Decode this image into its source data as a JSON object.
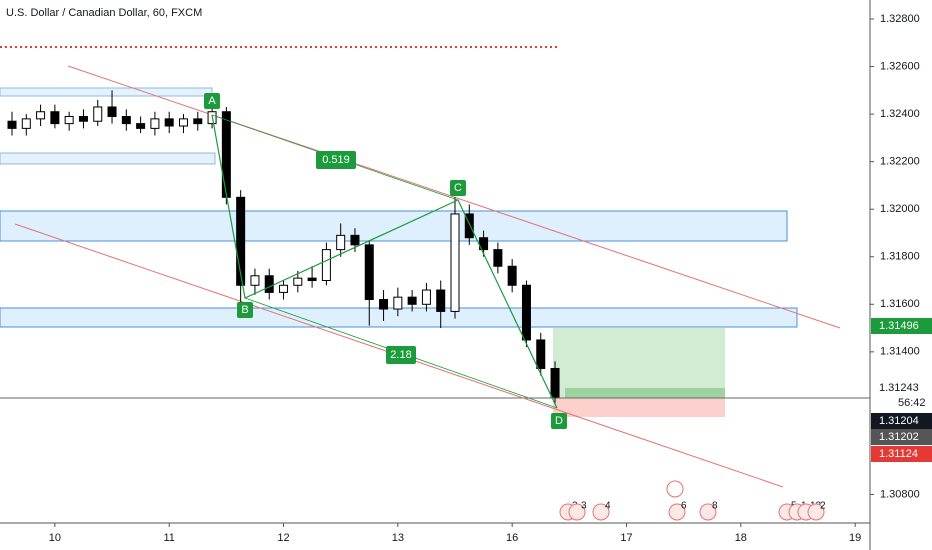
{
  "chart_data": {
    "type": "candlestick",
    "title": "U.S. Dollar / Canadian Dollar, 60, FXCM",
    "xlim": [
      -0.48,
      7.13
    ],
    "ylim": [
      1.3068,
      1.3288
    ],
    "xticks": [
      {
        "value": 0,
        "label": "10"
      },
      {
        "value": 1,
        "label": "11"
      },
      {
        "value": 2,
        "label": "12"
      },
      {
        "value": 3,
        "label": "13"
      },
      {
        "value": 4,
        "label": "16"
      },
      {
        "value": 5,
        "label": "17"
      },
      {
        "value": 6,
        "label": "18"
      },
      {
        "value": 7,
        "label": "19"
      }
    ],
    "yticks": [
      {
        "value": 1.308,
        "label": "1.30800"
      },
      {
        "value": 1.314,
        "label": "1.31400"
      },
      {
        "value": 1.316,
        "label": "1.31600"
      },
      {
        "value": 1.318,
        "label": "1.31800"
      },
      {
        "value": 1.32,
        "label": "1.32000"
      },
      {
        "value": 1.322,
        "label": "1.32200"
      },
      {
        "value": 1.324,
        "label": "1.32400"
      },
      {
        "value": 1.326,
        "label": "1.32600"
      },
      {
        "value": 1.328,
        "label": "1.32800"
      }
    ],
    "x": [
      -0.375,
      -0.25,
      -0.125,
      0,
      0.125,
      0.25,
      0.375,
      0.5,
      0.625,
      0.75,
      0.875,
      1,
      1.125,
      1.25,
      1.375,
      1.5,
      1.625,
      1.75,
      1.875,
      2,
      2.125,
      2.25,
      2.375,
      2.5,
      2.625,
      2.75,
      2.875,
      3,
      3.125,
      3.25,
      3.375,
      3.5,
      3.625,
      3.75,
      3.875,
      4,
      4.125,
      4.25,
      4.375
    ],
    "open": [
      1.3237,
      1.3234,
      1.3238,
      1.3241,
      1.3236,
      1.3239,
      1.3237,
      1.3243,
      1.3239,
      1.3236,
      1.3234,
      1.3238,
      1.3235,
      1.3238,
      1.3236,
      1.3241,
      1.3205,
      1.3168,
      1.3172,
      1.3165,
      1.3168,
      1.3171,
      1.317,
      1.3183,
      1.3189,
      1.3185,
      1.3162,
      1.3158,
      1.3163,
      1.316,
      1.3166,
      1.3157,
      1.3198,
      1.3188,
      1.3183,
      1.3176,
      1.3168,
      1.3145,
      1.3133
    ],
    "high": [
      1.3241,
      1.324,
      1.3244,
      1.3244,
      1.3241,
      1.3242,
      1.3246,
      1.325,
      1.3242,
      1.3239,
      1.3241,
      1.3241,
      1.324,
      1.3241,
      1.3245,
      1.3243,
      1.3208,
      1.3175,
      1.3175,
      1.317,
      1.3174,
      1.3176,
      1.3186,
      1.3194,
      1.3192,
      1.3187,
      1.3166,
      1.3167,
      1.3166,
      1.3169,
      1.317,
      1.3205,
      1.3202,
      1.3191,
      1.3186,
      1.3179,
      1.317,
      1.3148,
      1.3136
    ],
    "low": [
      1.3231,
      1.3231,
      1.3235,
      1.3234,
      1.3233,
      1.3234,
      1.3235,
      1.3236,
      1.3233,
      1.3232,
      1.3231,
      1.3232,
      1.3232,
      1.3233,
      1.3234,
      1.3202,
      1.3161,
      1.3164,
      1.3162,
      1.3162,
      1.3165,
      1.3167,
      1.3168,
      1.318,
      1.3182,
      1.3151,
      1.3153,
      1.3155,
      1.3157,
      1.3157,
      1.315,
      1.3154,
      1.3185,
      1.318,
      1.3173,
      1.3165,
      1.3142,
      1.313,
      1.3118
    ],
    "close": [
      1.3234,
      1.3238,
      1.3241,
      1.3236,
      1.3239,
      1.3237,
      1.3243,
      1.3239,
      1.3236,
      1.3234,
      1.3238,
      1.3235,
      1.3238,
      1.3236,
      1.3241,
      1.3205,
      1.3168,
      1.3172,
      1.3165,
      1.3168,
      1.3171,
      1.317,
      1.3183,
      1.3189,
      1.3185,
      1.3162,
      1.3158,
      1.3163,
      1.316,
      1.3166,
      1.3157,
      1.3198,
      1.3188,
      1.3183,
      1.3176,
      1.3168,
      1.3145,
      1.3133,
      1.3121
    ],
    "up_color": "#ffffff",
    "down_color": "#000000",
    "annotations": [
      "A",
      "B",
      "C",
      "D",
      "0.519",
      "2.18"
    ],
    "price_labels": [
      {
        "value": 1.31496,
        "color": "#1b9b3c"
      },
      {
        "value": 1.31243,
        "color": "#ffffff"
      },
      {
        "value": 1.31204,
        "color": "#131722"
      },
      {
        "value": 1.31202,
        "color": "#555555"
      },
      {
        "value": 1.31124,
        "color": "#e53935"
      }
    ],
    "countdown": "56:42",
    "events": [
      "3",
      "3",
      "4",
      "6",
      "8",
      "5",
      "1",
      "12",
      "2"
    ]
  }
}
